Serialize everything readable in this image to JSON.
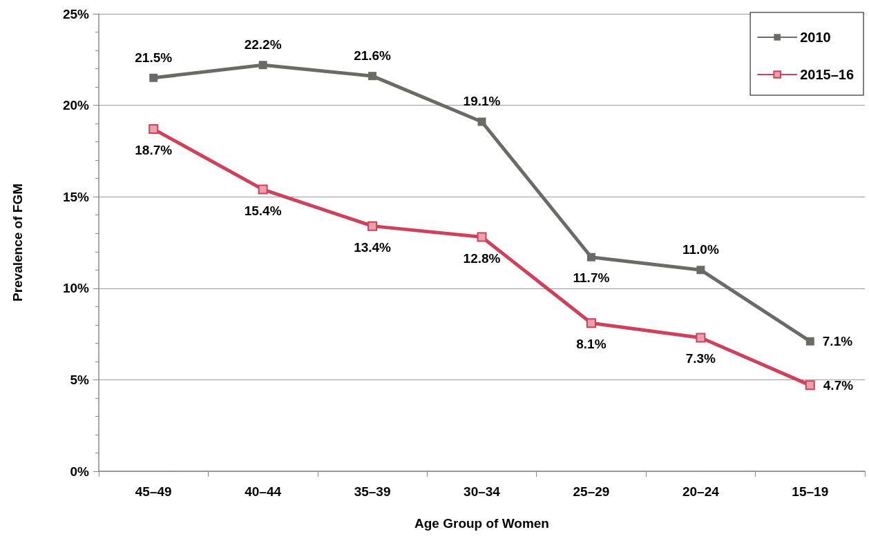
{
  "chart_data": {
    "type": "line",
    "xlabel": "Age Group of Women",
    "ylabel": "Prevalence of FGM",
    "categories": [
      "45–49",
      "40–44",
      "35–39",
      "30–34",
      "25–29",
      "20–24",
      "15–19"
    ],
    "series": [
      {
        "name": "2010",
        "color": "#6b6b66",
        "values": [
          21.5,
          22.2,
          21.6,
          19.1,
          11.7,
          11.0,
          7.1
        ],
        "value_labels": [
          "21.5%",
          "22.2%",
          "21.6%",
          "19.1%",
          "11.7%",
          "11.0%",
          "7.1%"
        ]
      },
      {
        "name": "2015–16",
        "color": "#d0405a",
        "values": [
          18.7,
          15.4,
          13.4,
          12.8,
          8.1,
          7.3,
          4.7
        ],
        "value_labels": [
          "18.7%",
          "15.4%",
          "13.4%",
          "12.8%",
          "8.1%",
          "7.3%",
          "4.7%"
        ]
      }
    ],
    "ylim": [
      0,
      25
    ],
    "yticks": [
      {
        "value": 0,
        "label": "0%"
      },
      {
        "value": 5,
        "label": "5%"
      },
      {
        "value": 10,
        "label": "10%"
      },
      {
        "value": 15,
        "label": "15%"
      },
      {
        "value": 20,
        "label": "20%"
      },
      {
        "value": 25,
        "label": "25%"
      }
    ],
    "grid": "y",
    "legend": "top right",
    "marker": "square",
    "line_style": "solid"
  }
}
